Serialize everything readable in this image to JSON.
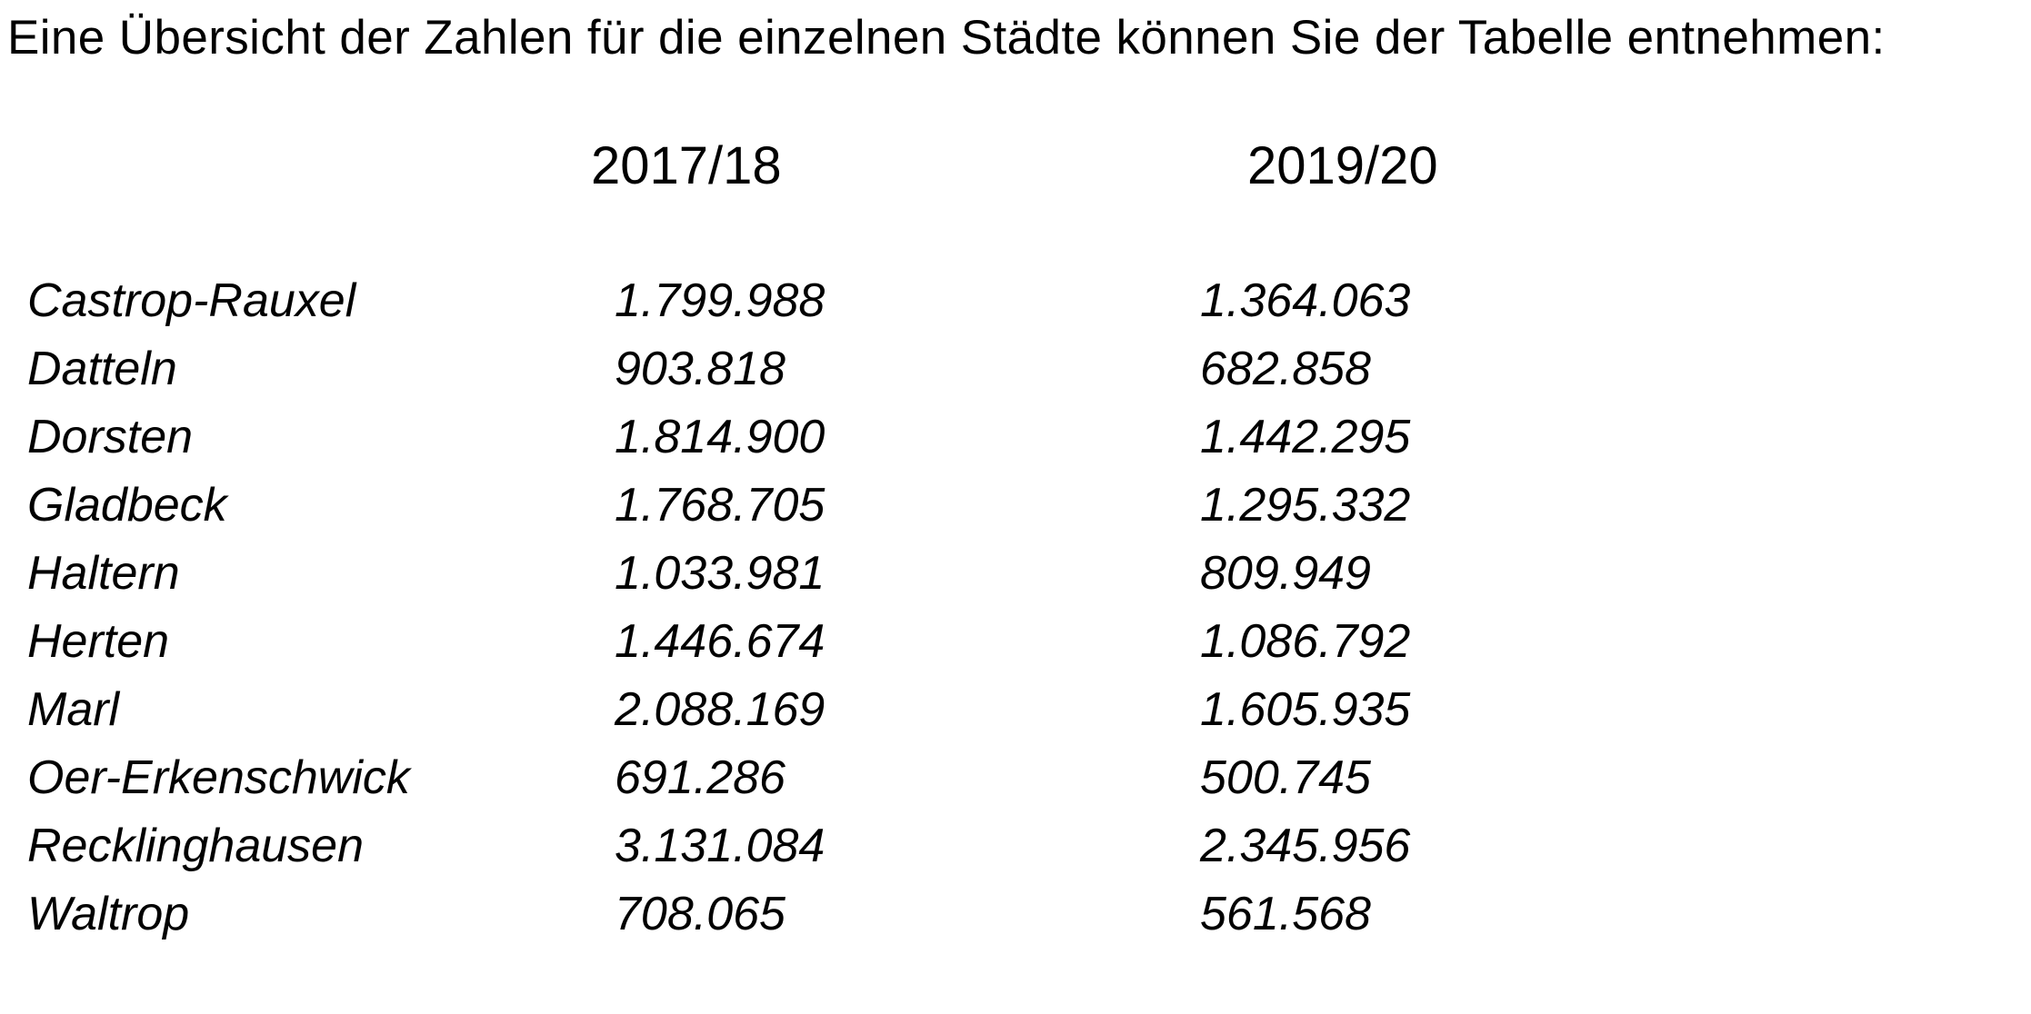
{
  "title": "Eine Übersicht der Zahlen für die einzelnen Städte können Sie der Tabelle entnehmen:",
  "colors": {
    "text": "#000000",
    "background": "#ffffff"
  },
  "table": {
    "col_headers": [
      "2017/18",
      "2019/20"
    ],
    "rows": [
      {
        "city": "Castrop-Rauxel",
        "y2017_18": "1.799.988",
        "y2019_20": "1.364.063"
      },
      {
        "city": "Datteln",
        "y2017_18": "903.818",
        "y2019_20": "682.858"
      },
      {
        "city": "Dorsten",
        "y2017_18": "1.814.900",
        "y2019_20": "1.442.295"
      },
      {
        "city": "Gladbeck",
        "y2017_18": "1.768.705",
        "y2019_20": "1.295.332"
      },
      {
        "city": "Haltern",
        "y2017_18": "1.033.981",
        "y2019_20": "809.949"
      },
      {
        "city": "Herten",
        "y2017_18": "1.446.674",
        "y2019_20": "1.086.792"
      },
      {
        "city": "Marl",
        "y2017_18": "2.088.169",
        "y2019_20": "1.605.935"
      },
      {
        "city": "Oer-Erkenschwick",
        "y2017_18": "691.286",
        "y2019_20": "500.745"
      },
      {
        "city": "Recklinghausen",
        "y2017_18": "3.131.084",
        "y2019_20": "2.345.956"
      },
      {
        "city": "Waltrop",
        "y2017_18": "708.065",
        "y2019_20": "561.568"
      }
    ]
  },
  "chart_data": {
    "type": "table",
    "title": "Eine Übersicht der Zahlen für die einzelnen Städte können Sie der Tabelle entnehmen:",
    "categories": [
      "Castrop-Rauxel",
      "Datteln",
      "Dorsten",
      "Gladbeck",
      "Haltern",
      "Herten",
      "Marl",
      "Oer-Erkenschwick",
      "Recklinghausen",
      "Waltrop"
    ],
    "series": [
      {
        "name": "2017/18",
        "values": [
          1799988,
          903818,
          1814900,
          1768705,
          1033981,
          1446674,
          2088169,
          691286,
          3131084,
          708065
        ]
      },
      {
        "name": "2019/20",
        "values": [
          1364063,
          682858,
          1442295,
          1295332,
          809949,
          1086792,
          1605935,
          500745,
          2345956,
          561568
        ]
      }
    ]
  }
}
